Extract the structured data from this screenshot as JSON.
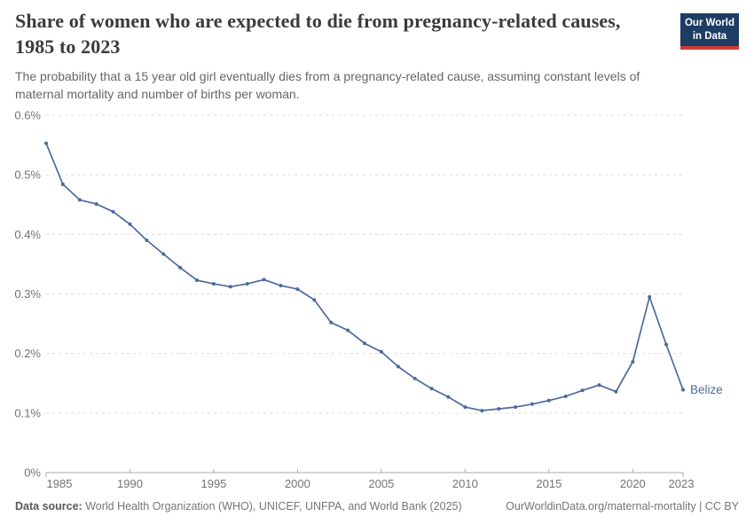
{
  "header": {
    "title": "Share of women who are expected to die from pregnancy-related causes, 1985 to 2023",
    "subtitle": "The probability that a 15 year old girl eventually dies from a pregnancy-related cause, assuming constant levels of maternal mortality and number of births per woman.",
    "logo": {
      "line1": "Our World",
      "line2": "in Data",
      "bg_color": "#1d3d63",
      "accent_color": "#d13b32"
    }
  },
  "chart_data": {
    "type": "line",
    "title": "Share of women who are expected to die from pregnancy-related causes, 1985 to 2023",
    "xlabel": "",
    "ylabel": "",
    "x": [
      1985,
      1986,
      1987,
      1988,
      1989,
      1990,
      1991,
      1992,
      1993,
      1994,
      1995,
      1996,
      1997,
      1998,
      1999,
      2000,
      2001,
      2002,
      2003,
      2004,
      2005,
      2006,
      2007,
      2008,
      2009,
      2010,
      2011,
      2012,
      2013,
      2014,
      2015,
      2016,
      2017,
      2018,
      2019,
      2020,
      2021,
      2022,
      2023
    ],
    "series": [
      {
        "name": "Belize",
        "color": "#4c6a9c",
        "values": [
          0.553,
          0.484,
          0.458,
          0.451,
          0.438,
          0.417,
          0.39,
          0.367,
          0.344,
          0.323,
          0.317,
          0.312,
          0.317,
          0.324,
          0.314,
          0.308,
          0.29,
          0.252,
          0.239,
          0.217,
          0.203,
          0.178,
          0.158,
          0.141,
          0.127,
          0.11,
          0.104,
          0.107,
          0.11,
          0.115,
          0.121,
          0.128,
          0.138,
          0.147,
          0.136,
          0.186,
          0.295,
          0.215,
          0.139
        ]
      }
    ],
    "xlim": [
      1985,
      2023
    ],
    "ylim": [
      0,
      0.6
    ],
    "x_ticks": [
      1985,
      1990,
      1995,
      2000,
      2005,
      2010,
      2015,
      2020,
      2023
    ],
    "y_ticks": [
      {
        "value": 0,
        "label": "0%"
      },
      {
        "value": 0.1,
        "label": "0.1%"
      },
      {
        "value": 0.2,
        "label": "0.2%"
      },
      {
        "value": 0.3,
        "label": "0.3%"
      },
      {
        "value": 0.4,
        "label": "0.4%"
      },
      {
        "value": 0.5,
        "label": "0.5%"
      },
      {
        "value": 0.6,
        "label": "0.6%"
      }
    ],
    "grid": "horizontal-dashed",
    "legend_position": "end-of-line-label",
    "entity_label": "Belize"
  },
  "footer": {
    "datasource_label": "Data source:",
    "datasource_text": " World Health Organization (WHO), UNICEF, UNFPA, and World Bank (2025)",
    "link_text": "OurWorldinData.org/maternal-mortality | CC BY"
  }
}
